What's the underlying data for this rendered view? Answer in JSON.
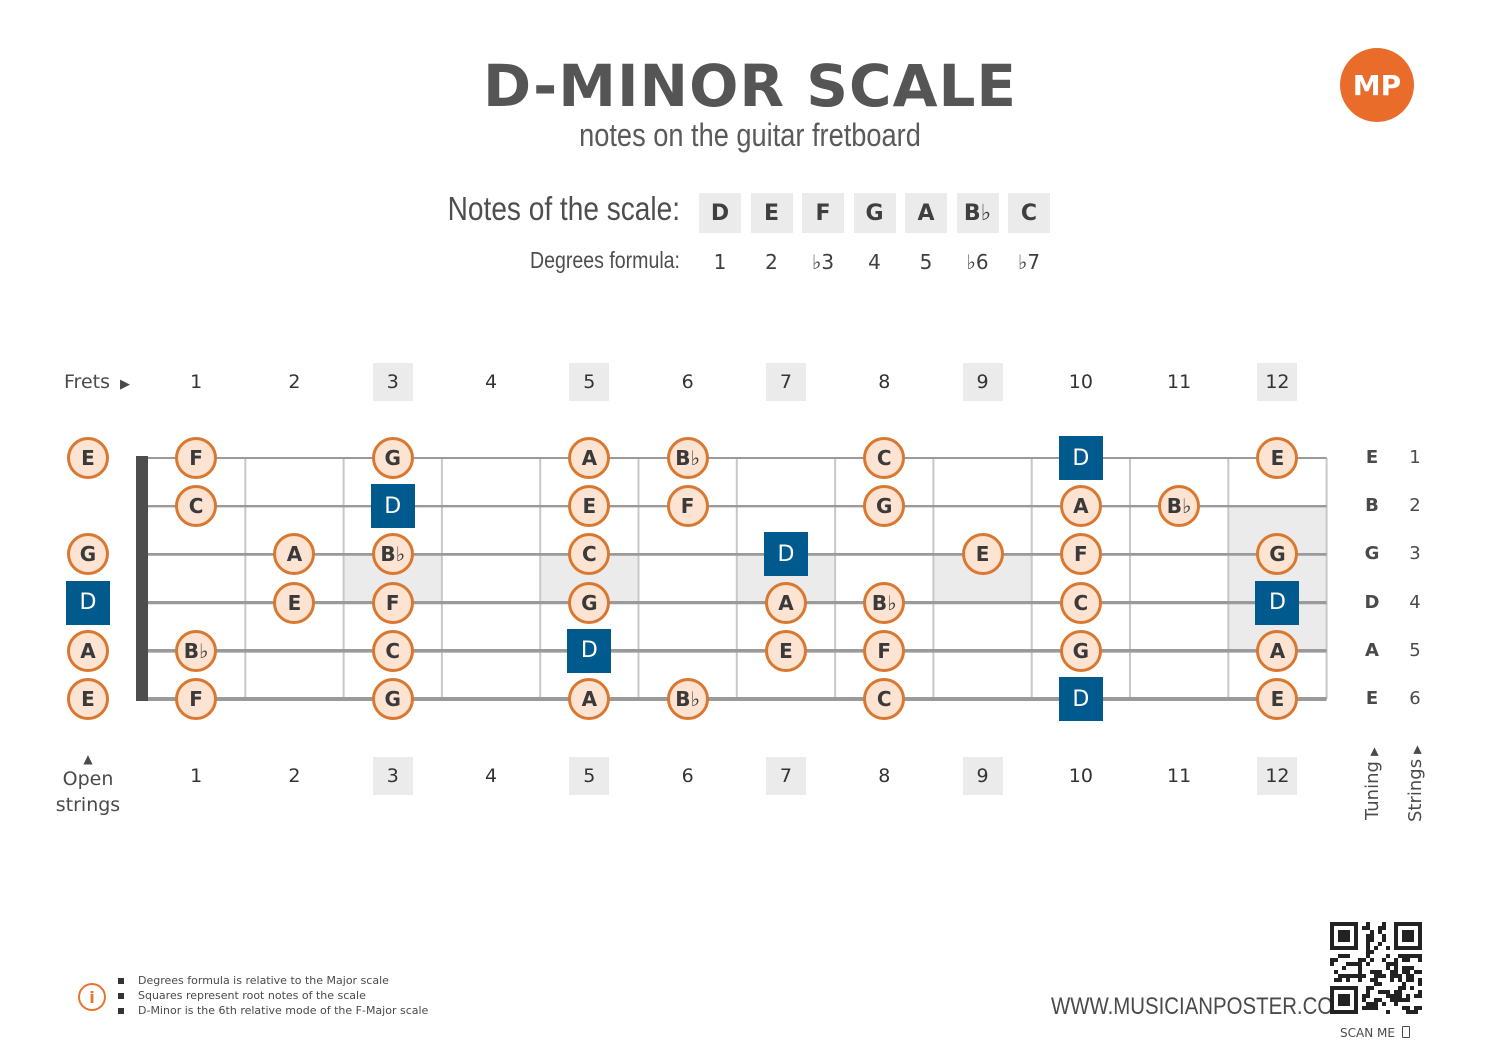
{
  "header": {
    "title": "D-MINOR SCALE",
    "subtitle": "notes on the guitar fretboard",
    "logo_text": "MP"
  },
  "scale": {
    "notes_label": "Notes of the scale:",
    "degrees_label": "Degrees formula:",
    "notes": [
      "D",
      "E",
      "F",
      "G",
      "A",
      "B♭",
      "C"
    ],
    "degrees": [
      "1",
      "2",
      "♭3",
      "4",
      "5",
      "♭6",
      "♭7"
    ]
  },
  "fretboard": {
    "frets_label": "Frets",
    "fret_numbers": [
      "1",
      "2",
      "3",
      "4",
      "5",
      "6",
      "7",
      "8",
      "9",
      "10",
      "11",
      "12"
    ],
    "inlay_frets": [
      3,
      5,
      7,
      9,
      12
    ],
    "open_strings_label_line1": "Open",
    "open_strings_label_line2": "strings",
    "tuning_label": "Tuning",
    "strings_label": "Strings",
    "strings": [
      {
        "number": "1",
        "tuning": "E",
        "notes": {
          "0": "E",
          "1": "F",
          "3": "G",
          "5": "A",
          "6": "B♭",
          "8": "C",
          "10": "D",
          "12": "E"
        }
      },
      {
        "number": "2",
        "tuning": "B",
        "notes": {
          "1": "C",
          "3": "D",
          "5": "E",
          "6": "F",
          "8": "G",
          "10": "A",
          "11": "B♭"
        }
      },
      {
        "number": "3",
        "tuning": "G",
        "notes": {
          "0": "G",
          "2": "A",
          "3": "B♭",
          "5": "C",
          "7": "D",
          "9": "E",
          "10": "F",
          "12": "G"
        }
      },
      {
        "number": "4",
        "tuning": "D",
        "notes": {
          "0": "D",
          "2": "E",
          "3": "F",
          "5": "G",
          "7": "A",
          "8": "B♭",
          "10": "C",
          "12": "D"
        }
      },
      {
        "number": "5",
        "tuning": "A",
        "notes": {
          "0": "A",
          "1": "B♭",
          "3": "C",
          "5": "D",
          "7": "E",
          "8": "F",
          "10": "G",
          "12": "A"
        }
      },
      {
        "number": "6",
        "tuning": "E",
        "notes": {
          "0": "E",
          "1": "F",
          "3": "G",
          "5": "A",
          "6": "B♭",
          "8": "C",
          "10": "D",
          "12": "E"
        }
      }
    ],
    "root_note": "D"
  },
  "footnotes": [
    "Degrees formula is relative to the Major scale",
    "Squares represent root notes of the scale",
    "D-Minor is the 6th relative mode of the F-Major scale"
  ],
  "footer": {
    "website": "WWW.MUSICIANPOSTER.COM",
    "scan_label": "SCAN ME"
  },
  "colors": {
    "note_fill": "#fce3d2",
    "note_border": "#d97830",
    "root_fill": "#015a8e",
    "inlay": "#ebebeb",
    "brand": "#ea6c2b"
  }
}
